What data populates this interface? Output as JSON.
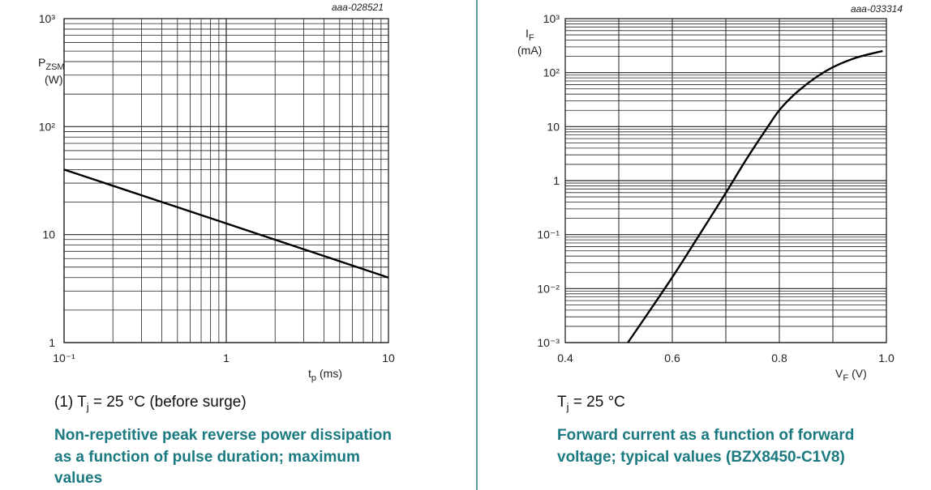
{
  "colors": {
    "caption": "#1b7a80",
    "divider": "#5d9ba0",
    "curve": "#000000",
    "grid": "#222222"
  },
  "chart_data": [
    {
      "type": "line",
      "figure_id": "aaa-028521",
      "ylabel": {
        "symbol": "P",
        "subscript": "ZSM",
        "unit": "(W)"
      },
      "xlabel": {
        "symbol": "t",
        "subscript": "p",
        "unit": "(ms)"
      },
      "xscale": "log",
      "yscale": "log",
      "xlim": [
        0.1,
        10
      ],
      "ylim": [
        1,
        1000
      ],
      "xticks": [
        {
          "v": 0.1,
          "label": "10⁻¹"
        },
        {
          "v": 1,
          "label": "1"
        },
        {
          "v": 10,
          "label": "10"
        }
      ],
      "yticks": [
        {
          "v": 1000,
          "label": "10³"
        },
        {
          "v": 100,
          "label": "10²"
        },
        {
          "v": 10,
          "label": "10"
        },
        {
          "v": 1,
          "label": "1"
        }
      ],
      "grid": true,
      "series": [
        {
          "x": [
            0.1,
            1,
            10
          ],
          "y": [
            40,
            12.7,
            4
          ]
        }
      ],
      "note": "(1) Tj = 25 °C (before surge)",
      "note_parts": {
        "pre": "(1) T",
        "sub": "j",
        "post": " = 25 °C (before surge)"
      },
      "caption": [
        "Non-repetitive peak reverse power dissipation",
        "as a function of pulse duration; maximum",
        "values"
      ]
    },
    {
      "type": "line",
      "figure_id": "aaa-033314",
      "ylabel": {
        "symbol": "I",
        "subscript": "F",
        "unit": "(mA)"
      },
      "xlabel": {
        "symbol": "V",
        "subscript": "F",
        "unit": "(V)"
      },
      "xscale": "linear",
      "yscale": "log",
      "xlim": [
        0.4,
        1.0
      ],
      "ylim": [
        0.001,
        1000
      ],
      "xticks": [
        {
          "v": 0.4,
          "label": "0.4"
        },
        {
          "v": 0.6,
          "label": "0.6"
        },
        {
          "v": 0.8,
          "label": "0.8"
        },
        {
          "v": 1.0,
          "label": "1.0"
        }
      ],
      "yticks": [
        {
          "v": 1000,
          "label": "10³"
        },
        {
          "v": 100,
          "label": "10²"
        },
        {
          "v": 10,
          "label": "10"
        },
        {
          "v": 1,
          "label": "1"
        },
        {
          "v": 0.1,
          "label": "10⁻¹"
        },
        {
          "v": 0.01,
          "label": "10⁻²"
        },
        {
          "v": 0.001,
          "label": "10⁻³"
        }
      ],
      "grid": true,
      "series": [
        {
          "x": [
            0.517,
            0.551,
            0.602,
            0.647,
            0.698,
            0.738,
            0.778,
            0.803,
            0.839,
            0.889,
            0.94,
            0.993
          ],
          "y": [
            0.001,
            0.0031,
            0.0174,
            0.087,
            0.55,
            2.45,
            9.8,
            21.9,
            49,
            110,
            184,
            251
          ]
        }
      ],
      "note": "Tj = 25 °C",
      "note_parts": {
        "pre": "T",
        "sub": "j",
        "post": " = 25 °C"
      },
      "caption": [
        "Forward current as a function of forward",
        "voltage; typical values (BZX8450-C1V8)"
      ]
    }
  ]
}
